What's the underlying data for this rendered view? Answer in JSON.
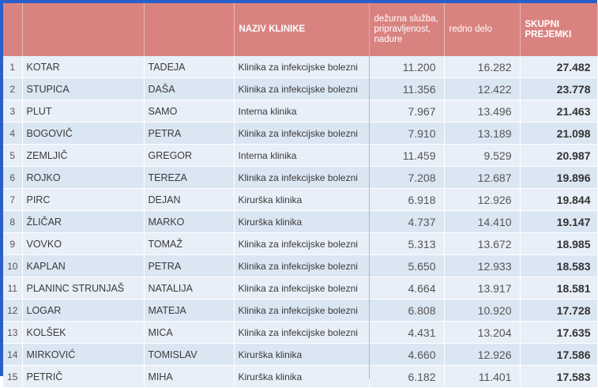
{
  "table": {
    "headers": {
      "idx": "",
      "surname": "",
      "name": "",
      "clinic": "NAZIV KLINIKE",
      "duty": "dežurna služba, pripravljenost, nadure",
      "regular": "redno delo",
      "total": "SKUPNI PREJEMKI"
    },
    "rows": [
      {
        "idx": "1",
        "surname": "KOTAR",
        "name": "TADEJA",
        "clinic": "Klinika za infekcijske bolezni",
        "duty": "11.200",
        "regular": "16.282",
        "total": "27.482"
      },
      {
        "idx": "2",
        "surname": "STUPICA",
        "name": "DAŠA",
        "clinic": "Klinika za infekcijske bolezni",
        "duty": "11.356",
        "regular": "12.422",
        "total": "23.778"
      },
      {
        "idx": "3",
        "surname": "PLUT",
        "name": "SAMO",
        "clinic": "Interna klinika",
        "duty": "7.967",
        "regular": "13.496",
        "total": "21.463"
      },
      {
        "idx": "4",
        "surname": "BOGOVIČ",
        "name": "PETRA",
        "clinic": "Klinika za infekcijske bolezni",
        "duty": "7.910",
        "regular": "13.189",
        "total": "21.098"
      },
      {
        "idx": "5",
        "surname": "ZEMLJIČ",
        "name": "GREGOR",
        "clinic": "Interna klinika",
        "duty": "11.459",
        "regular": "9.529",
        "total": "20.987"
      },
      {
        "idx": "6",
        "surname": "ROJKO",
        "name": "TEREZA",
        "clinic": "Klinika za infekcijske bolezni",
        "duty": "7.208",
        "regular": "12.687",
        "total": "19.896"
      },
      {
        "idx": "7",
        "surname": "PIRC",
        "name": "DEJAN",
        "clinic": "Kirurška klinika",
        "duty": "6.918",
        "regular": "12.926",
        "total": "19.844"
      },
      {
        "idx": "8",
        "surname": "ŽLIČAR",
        "name": "MARKO",
        "clinic": "Kirurška klinika",
        "duty": "4.737",
        "regular": "14.410",
        "total": "19.147"
      },
      {
        "idx": "9",
        "surname": "VOVKO",
        "name": "TOMAŽ",
        "clinic": "Klinika za infekcijske bolezni",
        "duty": "5.313",
        "regular": "13.672",
        "total": "18.985"
      },
      {
        "idx": "10",
        "surname": "KAPLAN",
        "name": "PETRA",
        "clinic": "Klinika za infekcijske bolezni",
        "duty": "5.650",
        "regular": "12.933",
        "total": "18.583"
      },
      {
        "idx": "11",
        "surname": "PLANINC STRUNJAŠ",
        "name": "NATALIJA",
        "clinic": "Klinika za infekcijske bolezni",
        "duty": "4.664",
        "regular": "13.917",
        "total": "18.581"
      },
      {
        "idx": "12",
        "surname": "LOGAR",
        "name": "MATEJA",
        "clinic": "Klinika za infekcijske bolezni",
        "duty": "6.808",
        "regular": "10.920",
        "total": "17.728"
      },
      {
        "idx": "13",
        "surname": "KOLŠEK",
        "name": "MICA",
        "clinic": "Klinika za infekcijske bolezni",
        "duty": "4.431",
        "regular": "13.204",
        "total": "17.635"
      },
      {
        "idx": "14",
        "surname": "MIRKOVIĆ",
        "name": "TOMISLAV",
        "clinic": "Kirurška klinika",
        "duty": "4.660",
        "regular": "12.926",
        "total": "17.586"
      },
      {
        "idx": "15",
        "surname": "PETRIČ",
        "name": "MIHA",
        "clinic": "Kirurška klinika",
        "duty": "6.182",
        "regular": "11.401",
        "total": "17.583"
      }
    ]
  },
  "colors": {
    "header": "#d98381",
    "border": "#2a5fc9",
    "row_light": "#e8eff8",
    "row_dark": "#dbe6f3"
  }
}
